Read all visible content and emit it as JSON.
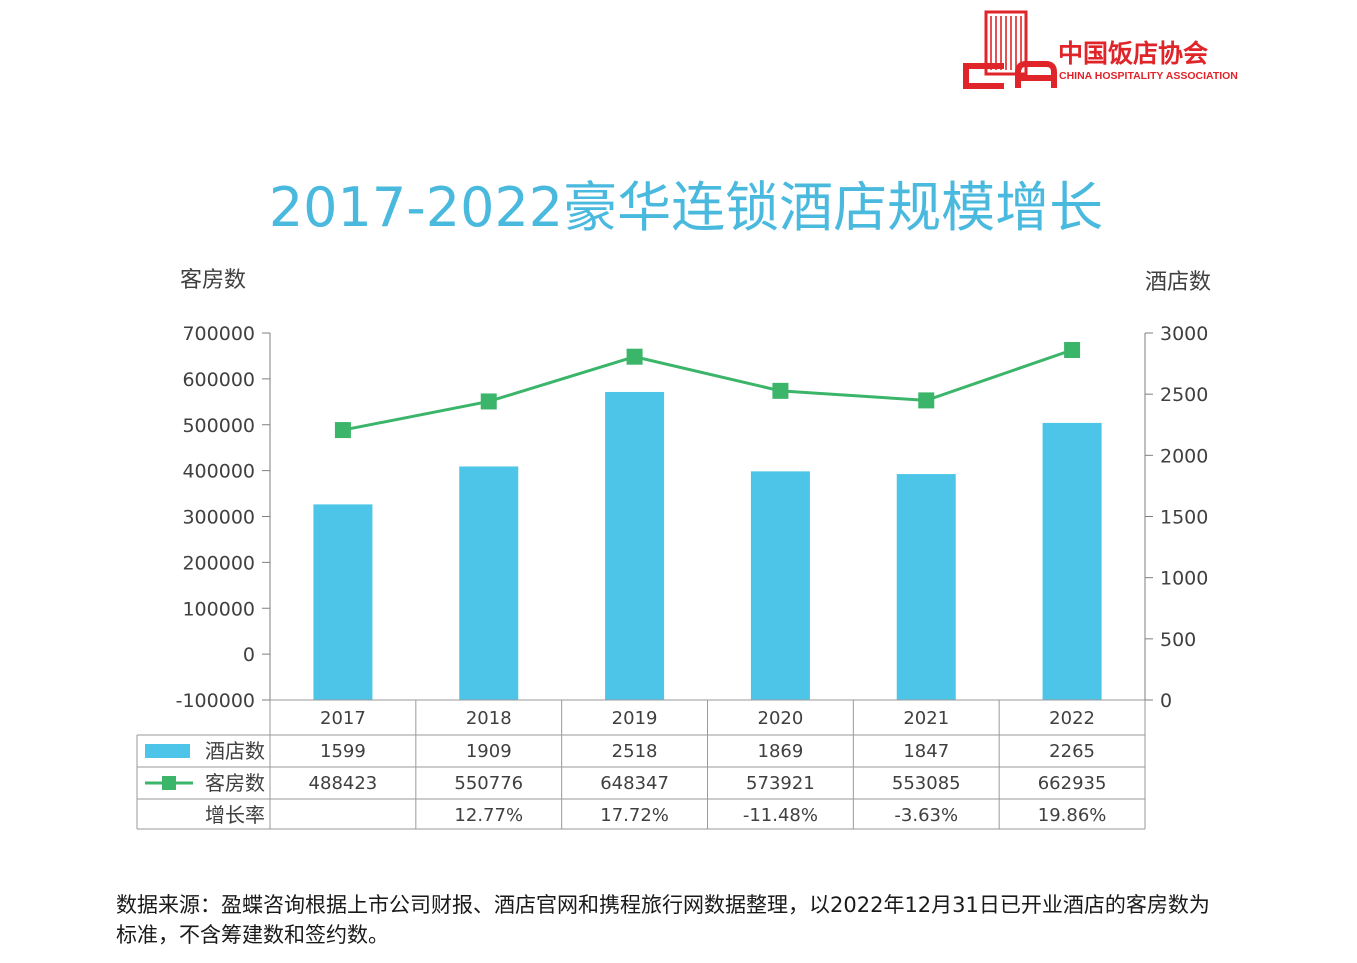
{
  "logo": {
    "name_cn": "中国饭店协会",
    "name_en": "CHINA HOSPITALITY ASSOCIATION",
    "color": "#e0252a"
  },
  "colors": {
    "title": "#4ab9de",
    "bar": "#4dc5e8",
    "line": "#3bb56a",
    "axis": "#7f7f7f",
    "grid_table": "#9a9a9a"
  },
  "source_note": "数据来源：盈蝶咨询根据上市公司财报、酒店官网和携程旅行网数据整理，以2022年12月31日已开业酒店的客房数为标准，不含筹建数和签约数。",
  "chart_data": {
    "type": "bar",
    "title": "2017-2022豪华连锁酒店规模增长",
    "categories": [
      "2017",
      "2018",
      "2019",
      "2020",
      "2021",
      "2022"
    ],
    "y_left": {
      "label": "客房数",
      "ylim": [
        -100000,
        700000
      ],
      "ticks": [
        "700000",
        "600000",
        "500000",
        "400000",
        "300000",
        "200000",
        "100000",
        "0",
        "-100000"
      ]
    },
    "y_right": {
      "label": "酒店数",
      "ylim": [
        0,
        3000
      ],
      "ticks": [
        "3000",
        "2500",
        "2000",
        "1500",
        "1000",
        "500",
        "0"
      ]
    },
    "series": [
      {
        "name": "酒店数",
        "type": "bar",
        "axis": "right",
        "values": [
          1599,
          1909,
          2518,
          1869,
          1847,
          2265
        ],
        "labels": [
          "1599",
          "1909",
          "2518",
          "1869",
          "1847",
          "2265"
        ]
      },
      {
        "name": "客房数",
        "type": "line",
        "axis": "left",
        "values": [
          488423,
          550776,
          648347,
          573921,
          553085,
          662935
        ],
        "labels": [
          "488423",
          "550776",
          "648347",
          "573921",
          "553085",
          "662935"
        ]
      },
      {
        "name": "增长率",
        "type": "table-row",
        "labels": [
          "",
          "12.77%",
          "17.72%",
          "-11.48%",
          "-3.63%",
          "19.86%"
        ]
      }
    ],
    "grid": false,
    "legend": "data-table"
  }
}
